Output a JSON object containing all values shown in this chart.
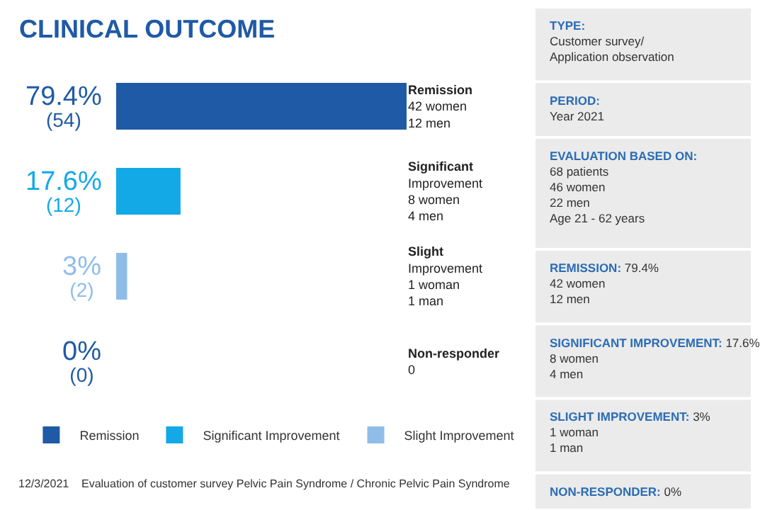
{
  "chart_data": [
    {
      "type": "bar",
      "orientation": "horizontal",
      "title": "CLINICAL OUTCOME",
      "categories": [
        "Remission\n42 women\n12 men",
        "Significant\nImprovement\n8 women\n4 men",
        "Slight\nImprovement\n1 woman\n1 man",
        "Non-responder\n0"
      ],
      "series": [
        {
          "name": "Remission",
          "color": "#1f5aa6",
          "values": [
            79.4,
            null,
            null,
            null
          ],
          "value_labels": [
            "79.4%\n(54)",
            null,
            null,
            null
          ]
        },
        {
          "name": "Significant Improvement",
          "color": "#12a9e6",
          "values": [
            null,
            17.6,
            null,
            null
          ],
          "value_labels": [
            null,
            "17.6%\n(12)",
            null,
            null
          ]
        },
        {
          "name": "Slight Improvement",
          "color": "#8fbde8",
          "values": [
            null,
            null,
            3,
            null
          ],
          "value_labels": [
            null,
            null,
            "3%\n(2)",
            null
          ]
        },
        {
          "color": "#1f5aa6",
          "values": [
            null,
            null,
            null,
            0
          ],
          "value_labels": [
            null,
            null,
            null,
            "0%\n(0)"
          ]
        }
      ],
      "xlim": [
        0,
        79.4
      ],
      "tick_labels": "y",
      "legend": "bottom",
      "annotations": [
        "12/3/2021",
        "Evaluation of customer survey Pelvic Pain Syndrome / Chronic Pelvic Pain Syndrome"
      ]
    },
    {
      "type": "other",
      "annotations": [
        "TYPE:\nCustomer survey/\nApplication observation",
        "PERIOD:\nYear 2021",
        "EVALUATION BASED ON:\n68 patients\n46 women\n22 men\nAge 21 - 62 years",
        "REMISSION: 79.4%\n42 women\n12 men",
        "SIGNIFICANT IMPROVEMENT: 17.6%\n8 women\n4 men",
        "SLIGHT IMPROVEMENT: 3%\n1 woman\n1 man",
        "NON-RESPONDER: 0%"
      ]
    }
  ]
}
